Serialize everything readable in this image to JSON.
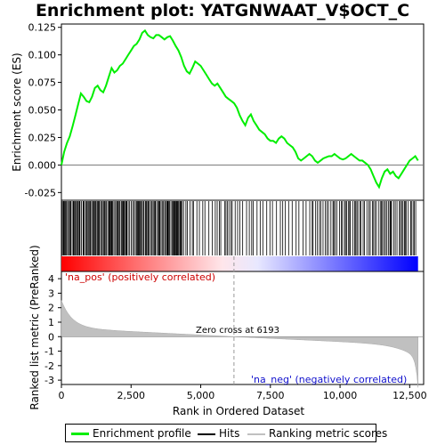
{
  "chart_data": {
    "type": "line",
    "title": "Enrichment plot: YATGNWAAT_V$OCT_C",
    "ylabel_top": "Enrichment score (ES)",
    "ylabel_bottom": "Ranked list metric (PreRanked)",
    "xlabel": "Rank in Ordered Dataset",
    "xlim": [
      0,
      13000
    ],
    "xticks": [
      0,
      2500,
      5000,
      7500,
      10000,
      12500
    ],
    "es_ylim": [
      -0.032,
      0.128
    ],
    "es_yticks": [
      -0.025,
      0.0,
      0.025,
      0.05,
      0.075,
      0.1,
      0.125
    ],
    "es_ytick_labels": [
      "-0.025",
      "0.000",
      "0.025",
      "0.050",
      "0.075",
      "0.100",
      "0.125"
    ],
    "metric_ylim": [
      -3.3,
      4.5
    ],
    "metric_yticks": [
      -3,
      -2,
      -1,
      0,
      1,
      2,
      3,
      4
    ],
    "enrichment_profile": {
      "name": "Enrichment profile",
      "color": "#00ee00",
      "x": [
        0,
        100,
        200,
        300,
        400,
        500,
        600,
        700,
        800,
        900,
        1000,
        1100,
        1200,
        1300,
        1400,
        1500,
        1600,
        1700,
        1800,
        1900,
        2000,
        2100,
        2200,
        2300,
        2400,
        2500,
        2600,
        2700,
        2800,
        2900,
        3000,
        3100,
        3200,
        3300,
        3400,
        3500,
        3600,
        3700,
        3800,
        3900,
        4000,
        4100,
        4200,
        4300,
        4400,
        4500,
        4600,
        4700,
        4800,
        4900,
        5000,
        5100,
        5200,
        5300,
        5400,
        5500,
        5600,
        5700,
        5800,
        5900,
        6000,
        6100,
        6200,
        6300,
        6400,
        6500,
        6600,
        6700,
        6800,
        6900,
        7000,
        7100,
        7200,
        7300,
        7400,
        7500,
        7600,
        7700,
        7800,
        7900,
        8000,
        8100,
        8200,
        8300,
        8400,
        8500,
        8600,
        8700,
        8800,
        8900,
        9000,
        9100,
        9200,
        9300,
        9400,
        9500,
        9600,
        9700,
        9800,
        9900,
        10000,
        10100,
        10200,
        10300,
        10400,
        10500,
        10600,
        10700,
        10800,
        10900,
        11000,
        11100,
        11200,
        11300,
        11400,
        11500,
        11600,
        11700,
        11800,
        11900,
        12000,
        12100,
        12200,
        12300,
        12400,
        12500,
        12600,
        12700,
        12800
      ],
      "y": [
        0.0,
        0.012,
        0.02,
        0.026,
        0.035,
        0.045,
        0.055,
        0.065,
        0.062,
        0.058,
        0.057,
        0.062,
        0.07,
        0.072,
        0.068,
        0.066,
        0.072,
        0.08,
        0.088,
        0.084,
        0.086,
        0.09,
        0.092,
        0.096,
        0.1,
        0.104,
        0.108,
        0.11,
        0.114,
        0.12,
        0.122,
        0.118,
        0.116,
        0.115,
        0.118,
        0.118,
        0.116,
        0.114,
        0.116,
        0.117,
        0.113,
        0.108,
        0.104,
        0.098,
        0.09,
        0.085,
        0.083,
        0.088,
        0.094,
        0.092,
        0.09,
        0.086,
        0.082,
        0.078,
        0.074,
        0.072,
        0.074,
        0.07,
        0.066,
        0.062,
        0.06,
        0.058,
        0.056,
        0.052,
        0.045,
        0.04,
        0.036,
        0.043,
        0.046,
        0.04,
        0.036,
        0.032,
        0.03,
        0.028,
        0.024,
        0.022,
        0.022,
        0.02,
        0.024,
        0.026,
        0.024,
        0.02,
        0.018,
        0.016,
        0.012,
        0.006,
        0.004,
        0.006,
        0.008,
        0.01,
        0.008,
        0.004,
        0.002,
        0.004,
        0.006,
        0.007,
        0.008,
        0.008,
        0.01,
        0.008,
        0.006,
        0.005,
        0.006,
        0.008,
        0.01,
        0.008,
        0.006,
        0.004,
        0.004,
        0.002,
        0.0,
        -0.004,
        -0.01,
        -0.016,
        -0.02,
        -0.012,
        -0.006,
        -0.004,
        -0.008,
        -0.006,
        -0.01,
        -0.012,
        -0.008,
        -0.004,
        0.0,
        0.004,
        0.006,
        0.008,
        0.004
      ]
    },
    "hits_label": "Hits",
    "ranking_metric_label": "Ranking metric scores",
    "pos_label": "'na_pos' (positively correlated)",
    "neg_label": "'na_neg' (negatively correlated)",
    "zero_cross_label": "Zero cross at 6193",
    "zero_cross": 6193,
    "n_genes": 12800,
    "colors": {
      "profile": "#00ee00",
      "hits": "#000000",
      "metric": "#c0c0c0",
      "pos_text": "#cc0000",
      "neg_text": "#1010cc",
      "bar_red": "#ff0000",
      "bar_blue": "#0000ff"
    }
  },
  "legend": {
    "profile": "Enrichment profile",
    "hits": "Hits",
    "metric": "Ranking metric scores"
  }
}
